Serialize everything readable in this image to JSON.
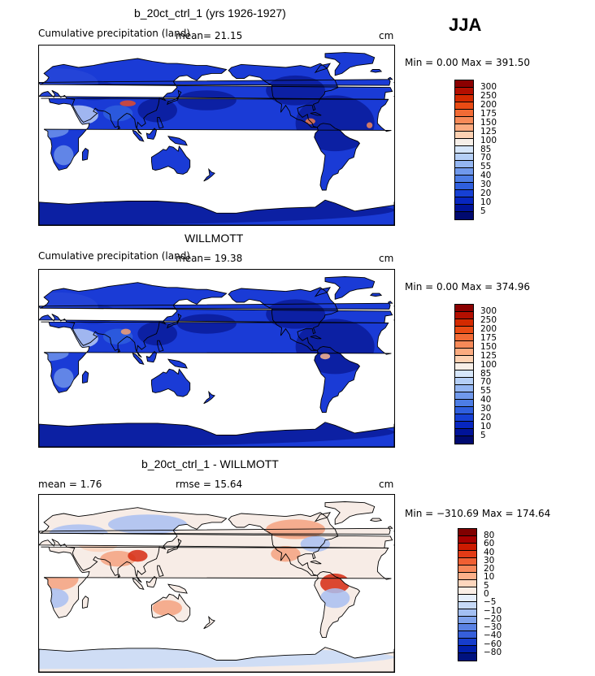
{
  "season": "JJA",
  "panels": [
    {
      "title": "b_20ct_ctrl_1 (yrs 1926-1927)",
      "left_label": "Cumulative precipitation (land)",
      "mean_label": "mean=   21.15",
      "rmse_label": "",
      "units": "cm",
      "minmax": "Min =   0.00 Max = 391.50",
      "scheme": "precip",
      "colorbar_colors": [
        "#8b0000",
        "#b30f00",
        "#d42a00",
        "#ea4b14",
        "#f26b35",
        "#f78a58",
        "#fbab80",
        "#fdd1b2",
        "#f7efe8",
        "#d6e6fa",
        "#b5cff6",
        "#94b6f2",
        "#7099ec",
        "#4d7de5",
        "#2f5fde",
        "#1640d4",
        "#0726c0",
        "#001399",
        "#000a70"
      ],
      "colorbar_labels": [
        "300",
        "250",
        "200",
        "175",
        "150",
        "125",
        "100",
        "85",
        "70",
        "55",
        "40",
        "30",
        "20",
        "10",
        "5"
      ]
    },
    {
      "title": "WILLMOTT",
      "left_label": "Cumulative precipitation (land)",
      "mean_label": "mean=   19.38",
      "rmse_label": "",
      "units": "cm",
      "minmax": "Min =   0.00 Max = 374.96",
      "scheme": "precip",
      "colorbar_colors": [
        "#8b0000",
        "#b30f00",
        "#d42a00",
        "#ea4b14",
        "#f26b35",
        "#f78a58",
        "#fbab80",
        "#fdd1b2",
        "#f7efe8",
        "#d6e6fa",
        "#b5cff6",
        "#94b6f2",
        "#7099ec",
        "#4d7de5",
        "#2f5fde",
        "#1640d4",
        "#0726c0",
        "#001399",
        "#000a70"
      ],
      "colorbar_labels": [
        "300",
        "250",
        "200",
        "175",
        "150",
        "125",
        "100",
        "85",
        "70",
        "55",
        "40",
        "30",
        "20",
        "10",
        "5"
      ]
    },
    {
      "title": "b_20ct_ctrl_1 - WILLMOTT",
      "left_label": "mean =    1.76",
      "mean_label": "",
      "rmse_label": "rmse =   15.64",
      "units": "cm",
      "minmax": "Min = −310.69 Max = 174.64",
      "scheme": "diff",
      "colorbar_colors": [
        "#800000",
        "#a80000",
        "#cc1a00",
        "#e33b16",
        "#f05f33",
        "#f7875a",
        "#fcb08a",
        "#fdd6bd",
        "#fbeee6",
        "#e6eefb",
        "#c6d9f7",
        "#a3bff2",
        "#7fa2ec",
        "#5a82e4",
        "#365fda",
        "#163dcc",
        "#001fab",
        "#00127f"
      ],
      "colorbar_labels": [
        "80",
        "60",
        "40",
        "30",
        "20",
        "10",
        "5",
        "0",
        "−5",
        "−10",
        "−20",
        "−30",
        "−40",
        "−60",
        "−80"
      ]
    }
  ]
}
